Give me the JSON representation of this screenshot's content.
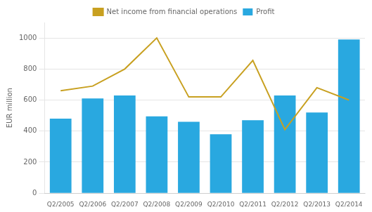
{
  "chart_data": {
    "type": "bar",
    "ylabel": "EUR million",
    "categories": [
      "Q2/2005",
      "Q2/2006",
      "Q2/2007",
      "Q2/2008",
      "Q2/2009",
      "Q2/2010",
      "Q2/2011",
      "Q2/2012",
      "Q2/2013",
      "Q2/2014"
    ],
    "series": [
      {
        "name": "Profit",
        "type": "bar",
        "color": "#29a8e0",
        "values": [
          480,
          610,
          630,
          495,
          460,
          380,
          470,
          630,
          520,
          990
        ]
      },
      {
        "name": "Net income from financial operations",
        "type": "line",
        "color": "#c8a020",
        "values": [
          660,
          690,
          800,
          1000,
          620,
          620,
          855,
          410,
          680,
          600
        ]
      }
    ],
    "ylim": [
      0,
      1100
    ],
    "yticks": [
      0,
      200,
      400,
      600,
      800,
      1000
    ],
    "grid": true,
    "legend": "top"
  }
}
